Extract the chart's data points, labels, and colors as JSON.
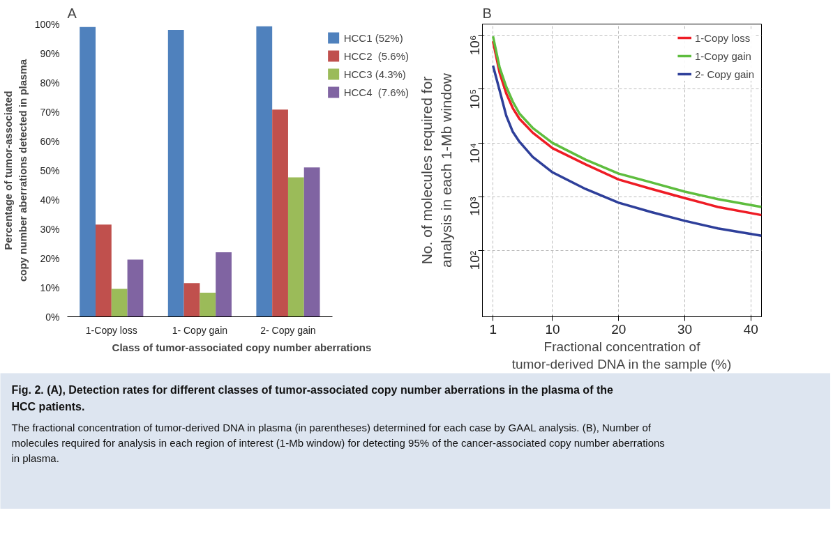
{
  "chart_data": [
    {
      "type": "bar",
      "title": "A",
      "xlabel": "Class of tumor-associated copy number aberrations",
      "ylabel": "Percentage of tumor-associated\ncopy number aberrations detected in plasma",
      "categories": [
        "1-Copy loss",
        "1- Copy gain",
        "2- Copy gain"
      ],
      "series": [
        {
          "name": "HCC1 (52%)",
          "color": "#4f81bd",
          "values": [
            99,
            98,
            99.2
          ]
        },
        {
          "name": "HCC2  (5.6%)",
          "color": "#c0504d",
          "values": [
            31.5,
            11.5,
            70.8
          ]
        },
        {
          "name": "HCC3 (4.3%)",
          "color": "#9bbb59",
          "values": [
            9.5,
            8.2,
            47.6
          ]
        },
        {
          "name": "HCC4  (7.6%)",
          "color": "#8064a2",
          "values": [
            19.5,
            22,
            51
          ]
        }
      ],
      "ylim": [
        0,
        100
      ],
      "yticks": [
        {
          "value": 0,
          "label": "0%"
        },
        {
          "value": 10,
          "label": "10%"
        },
        {
          "value": 20,
          "label": "20%"
        },
        {
          "value": 30,
          "label": "30%"
        },
        {
          "value": 40,
          "label": "40%"
        },
        {
          "value": 50,
          "label": "50%"
        },
        {
          "value": 60,
          "label": "60%"
        },
        {
          "value": 70,
          "label": "70%"
        },
        {
          "value": 80,
          "label": "80%"
        },
        {
          "value": 90,
          "label": "90%"
        },
        {
          "value": 100,
          "label": "100%"
        }
      ],
      "legend": "right",
      "grid": false
    },
    {
      "type": "line",
      "title": "B",
      "xlabel": "Fractional concentration of\ntumor-derived DNA in the sample (%)",
      "ylabel": "No. of molecules required for\nanalysis in each 1-Mb window",
      "x": [
        1,
        2,
        3,
        4,
        5,
        7,
        10,
        15,
        20,
        25,
        30,
        35,
        41.6
      ],
      "series": [
        {
          "name": "1-Copy loss",
          "color": "#ee1c25",
          "values": [
            770000,
            200000,
            83000,
            44000,
            28000,
            15500,
            8000,
            4000,
            2100,
            1400,
            950,
            650,
            460
          ]
        },
        {
          "name": "1-Copy gain",
          "color": "#5ebd3e",
          "values": [
            950000,
            250000,
            110000,
            58000,
            35000,
            19000,
            10000,
            4900,
            2700,
            1850,
            1250,
            910,
            650
          ]
        },
        {
          "name": "2- Copy gain",
          "color": "#2e3f9a",
          "values": [
            270000,
            94000,
            32000,
            16000,
            10500,
            5500,
            2850,
            1400,
            780,
            520,
            360,
            260,
            190
          ]
        }
      ],
      "xlim": [
        -0.6,
        41.6
      ],
      "xticks": [
        1,
        10,
        20,
        30,
        40
      ],
      "ylim": [
        6,
        1600000
      ],
      "yticks": [
        {
          "value": 100,
          "label": "10²"
        },
        {
          "value": 1000,
          "label": "10³"
        },
        {
          "value": 10000,
          "label": "10⁴"
        },
        {
          "value": 100000,
          "label": "10⁵"
        },
        {
          "value": 1000000,
          "label": "10⁶"
        }
      ],
      "log": true,
      "grid": true,
      "legend": "top right"
    },
    {
      "type": "other",
      "title": "Fig. 2.  (A), Detection rates for different classes of tumor-associated copy number aberrations in the plasma of the HCC patients.",
      "annotations": [
        "The fractional concentration of tumor-derived DNA in plasma (in parentheses) determined for each case by GAAL analysis. (B), Number of molecules required for analysis in each region of interest (1-Mb window) for detecting 95% of the cancer-associated copy number aberrations in plasma."
      ]
    }
  ]
}
